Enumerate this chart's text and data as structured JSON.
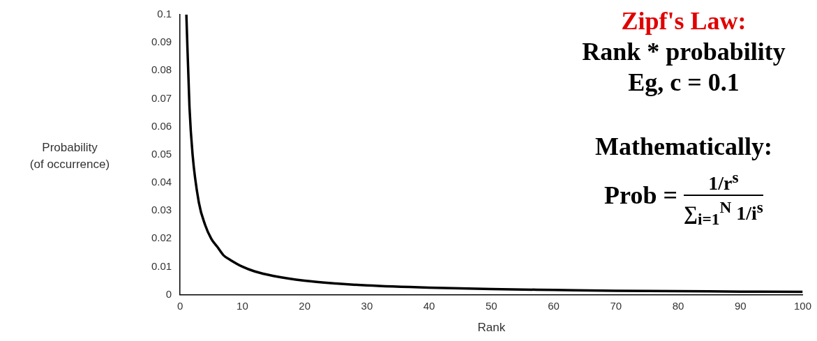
{
  "chart_data": {
    "type": "line",
    "xlabel": "Rank",
    "ylabel": "Probability\n(of occurrence)",
    "series": [
      {
        "color": "#000000",
        "x": [
          1,
          1.5,
          2,
          3,
          4,
          5,
          6,
          7,
          8,
          10,
          12,
          15,
          20,
          25,
          30,
          40,
          50,
          60,
          70,
          80,
          90,
          100
        ],
        "values": [
          0.1,
          0.067,
          0.05,
          0.033,
          0.025,
          0.02,
          0.017,
          0.014,
          0.0125,
          0.01,
          0.0083,
          0.0067,
          0.005,
          0.004,
          0.0033,
          0.0025,
          0.002,
          0.0017,
          0.0014,
          0.0013,
          0.0011,
          0.001
        ]
      }
    ],
    "xlim": [
      0,
      100
    ],
    "xticks": [
      0,
      10,
      20,
      30,
      40,
      50,
      60,
      70,
      80,
      90,
      100
    ],
    "ylim": [
      0,
      0.1
    ],
    "yticks": [
      0,
      0.01,
      0.02,
      0.03,
      0.04,
      0.05,
      0.06,
      0.07,
      0.08,
      0.09,
      0.1
    ],
    "grid": false,
    "legend": false,
    "marker": "none",
    "line_style": "solid",
    "annotations": [
      "Zipf's Law:",
      "Rank * probability",
      "Eg, c = 0.1",
      "Mathematically:",
      "Prob =",
      "1/r$^{s}$",
      "∑$_{i=1}$$^{N}$ 1/i$^{s}$"
    ]
  }
}
